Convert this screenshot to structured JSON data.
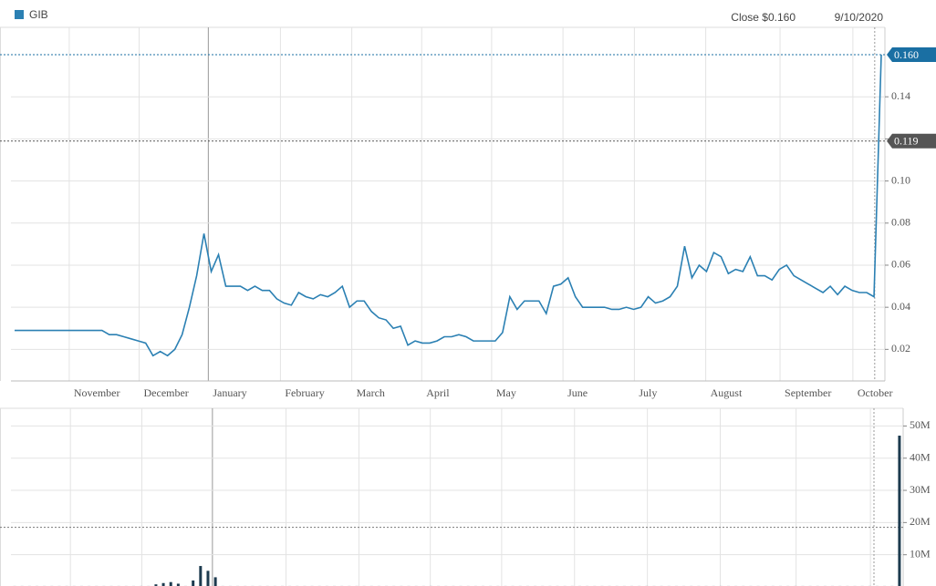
{
  "chart_data": [
    {
      "type": "line",
      "series": [
        {
          "name": "GIB",
          "color": "#2b80b3",
          "values": [
            0.029,
            0.029,
            0.029,
            0.029,
            0.029,
            0.029,
            0.029,
            0.029,
            0.029,
            0.029,
            0.029,
            0.029,
            0.029,
            0.027,
            0.027,
            0.026,
            0.025,
            0.024,
            0.023,
            0.017,
            0.019,
            0.017,
            0.02,
            0.027,
            0.04,
            0.055,
            0.075,
            0.057,
            0.065,
            0.05,
            0.05,
            0.05,
            0.048,
            0.05,
            0.048,
            0.048,
            0.044,
            0.042,
            0.041,
            0.047,
            0.045,
            0.044,
            0.046,
            0.045,
            0.047,
            0.05,
            0.04,
            0.043,
            0.043,
            0.038,
            0.035,
            0.034,
            0.03,
            0.031,
            0.022,
            0.024,
            0.023,
            0.023,
            0.024,
            0.026,
            0.026,
            0.027,
            0.026,
            0.024,
            0.024,
            0.024,
            0.024,
            0.028,
            0.045,
            0.039,
            0.043,
            0.043,
            0.043,
            0.037,
            0.05,
            0.051,
            0.054,
            0.045,
            0.04,
            0.04,
            0.04,
            0.04,
            0.039,
            0.039,
            0.04,
            0.039,
            0.04,
            0.045,
            0.042,
            0.043,
            0.045,
            0.05,
            0.069,
            0.054,
            0.06,
            0.057,
            0.066,
            0.064,
            0.056,
            0.058,
            0.057,
            0.064,
            0.055,
            0.055,
            0.053,
            0.058,
            0.06,
            0.055,
            0.053,
            0.051,
            0.049,
            0.047,
            0.05,
            0.046,
            0.05,
            0.048,
            0.047,
            0.047,
            0.045,
            0.16
          ]
        }
      ],
      "xlim": [
        0,
        120
      ],
      "xticks": [
        {
          "value": 8,
          "label": "November"
        },
        {
          "value": 17.6,
          "label": "December"
        },
        {
          "value": 27.1,
          "label": "January"
        },
        {
          "value": 37,
          "label": "February"
        },
        {
          "value": 46.8,
          "label": "March"
        },
        {
          "value": 56.4,
          "label": "April"
        },
        {
          "value": 66,
          "label": "May"
        },
        {
          "value": 75.8,
          "label": "June"
        },
        {
          "value": 85.6,
          "label": "July"
        },
        {
          "value": 95.4,
          "label": "August"
        },
        {
          "value": 105.6,
          "label": "September"
        },
        {
          "value": 115.6,
          "label": "October"
        }
      ],
      "ylim": [
        0.005,
        0.173
      ],
      "yticks": [
        0.02,
        0.04,
        0.06,
        0.08,
        {
          "value": 0.1,
          "label": "0.10"
        },
        0.12,
        0.14
      ],
      "grid": true,
      "close_label": "Close $0.160",
      "date_label": "9/10/2020",
      "ref_lines": [
        {
          "value": 0.16,
          "label": "0.160",
          "color": "#1a6fa3"
        },
        {
          "value": 0.119,
          "label": "0.119",
          "color": "#555555"
        }
      ]
    },
    {
      "type": "bar",
      "color": "#1d3b4f",
      "values": [
        300000,
        300000,
        300000,
        300000,
        300000,
        300000,
        300000,
        300000,
        300000,
        300000,
        300000,
        300000,
        300000,
        300000,
        300000,
        300000,
        300000,
        300000,
        300000,
        800000,
        1200000,
        1500000,
        1000000,
        300000,
        2000000,
        6500000,
        5000000,
        3000000,
        300000,
        300000,
        300000,
        300000,
        300000,
        300000,
        300000,
        300000,
        300000,
        300000,
        300000,
        300000,
        300000,
        300000,
        300000,
        300000,
        300000,
        300000,
        300000,
        300000,
        300000,
        300000,
        300000,
        300000,
        300000,
        300000,
        300000,
        300000,
        300000,
        300000,
        300000,
        300000,
        300000,
        300000,
        300000,
        300000,
        300000,
        300000,
        300000,
        300000,
        300000,
        300000,
        300000,
        300000,
        300000,
        300000,
        300000,
        300000,
        300000,
        300000,
        300000,
        300000,
        300000,
        300000,
        300000,
        300000,
        300000,
        300000,
        300000,
        300000,
        300000,
        300000,
        300000,
        300000,
        300000,
        300000,
        300000,
        300000,
        300000,
        300000,
        300000,
        300000,
        300000,
        300000,
        300000,
        300000,
        300000,
        300000,
        300000,
        300000,
        300000,
        300000,
        300000,
        300000,
        300000,
        300000,
        300000,
        300000,
        300000,
        300000,
        300000,
        47000000
      ],
      "xlim": [
        0,
        120
      ],
      "ylim": [
        0,
        55500000
      ],
      "yticks": [
        {
          "value": 10000000,
          "label": "10M"
        },
        {
          "value": 20000000,
          "label": "20M"
        },
        {
          "value": 30000000,
          "label": "30M"
        },
        {
          "value": 40000000,
          "label": "40M"
        },
        {
          "value": 50000000,
          "label": "50M"
        }
      ],
      "grid": true,
      "ref_lines": [
        {
          "value": 18500000
        }
      ]
    }
  ]
}
